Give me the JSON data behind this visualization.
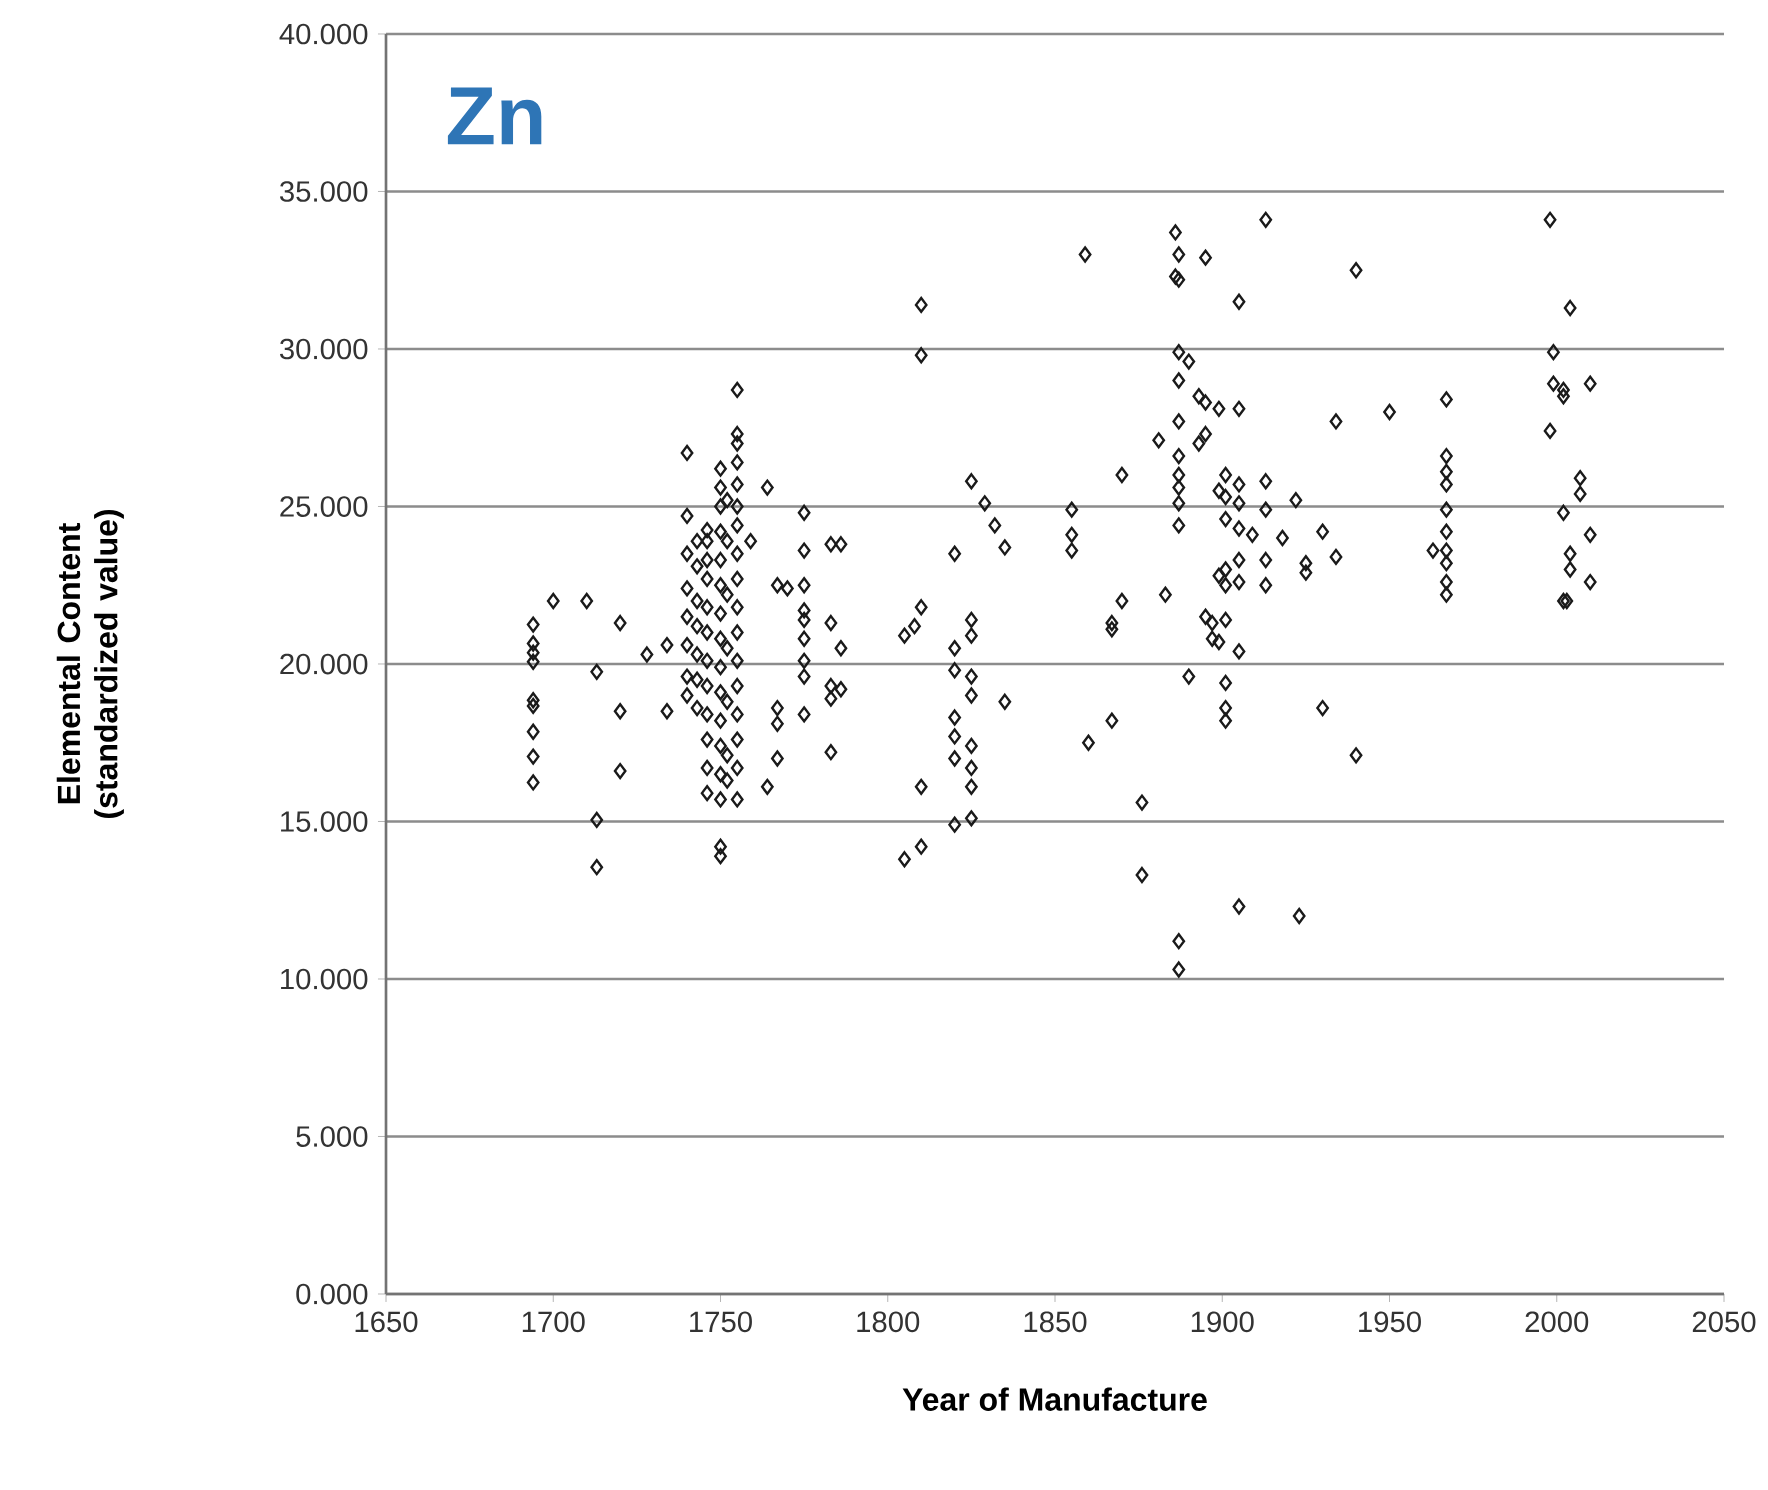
{
  "chart_data": {
    "type": "scatter",
    "title": "Zn",
    "xlabel": "Year of Manufacture",
    "ylabel": "Elemental Content (standardized value)",
    "xlim": [
      1650,
      2050
    ],
    "ylim": [
      0,
      40
    ],
    "xticks": [
      1650,
      1700,
      1750,
      1800,
      1850,
      1900,
      1950,
      2000,
      2050
    ],
    "yticks": [
      {
        "value": 0,
        "label": "0.000"
      },
      {
        "value": 5,
        "label": "5.000"
      },
      {
        "value": 10,
        "label": "10.000"
      },
      {
        "value": 15,
        "label": "15.000"
      },
      {
        "value": 20,
        "label": "20.000"
      },
      {
        "value": 25,
        "label": "25.000"
      },
      {
        "value": 30,
        "label": "30.000"
      },
      {
        "value": 35,
        "label": "35.000"
      },
      {
        "value": 40,
        "label": "40.000"
      }
    ],
    "grid": "y",
    "marker": "diamond",
    "series": [
      {
        "color": "#1a1a1a",
        "x": [
          1694,
          1694,
          1694,
          1694,
          1694,
          1694,
          1694,
          1694,
          1694,
          1700,
          1710,
          1713,
          1713,
          1713,
          1720,
          1720,
          1720,
          1728,
          1734,
          1734,
          1740,
          1740,
          1740,
          1740,
          1740,
          1740,
          1740,
          1740,
          1743,
          1743,
          1743,
          1743,
          1743,
          1743,
          1743,
          1746,
          1746,
          1746,
          1746,
          1746,
          1746,
          1746,
          1746,
          1746,
          1746,
          1746,
          1746,
          1750,
          1750,
          1750,
          1750,
          1750,
          1750,
          1750,
          1750,
          1750,
          1750,
          1750,
          1750,
          1750,
          1750,
          1750,
          1750,
          1752,
          1752,
          1752,
          1752,
          1752,
          1752,
          1752,
          1755,
          1755,
          1755,
          1755,
          1755,
          1755,
          1755,
          1755,
          1755,
          1755,
          1755,
          1755,
          1755,
          1755,
          1755,
          1755,
          1755,
          1759,
          1764,
          1764,
          1767,
          1767,
          1767,
          1767,
          1770,
          1775,
          1775,
          1775,
          1775,
          1775,
          1775,
          1775,
          1775,
          1775,
          1783,
          1783,
          1783,
          1783,
          1783,
          1786,
          1786,
          1786,
          1805,
          1805,
          1808,
          1810,
          1810,
          1810,
          1810,
          1810,
          1820,
          1820,
          1820,
          1820,
          1820,
          1820,
          1820,
          1825,
          1825,
          1825,
          1825,
          1825,
          1825,
          1825,
          1825,
          1825,
          1829,
          1832,
          1835,
          1835,
          1855,
          1855,
          1855,
          1859,
          1860,
          1867,
          1867,
          1867,
          1870,
          1870,
          1876,
          1876,
          1881,
          1883,
          1886,
          1886,
          1887,
          1887,
          1887,
          1887,
          1887,
          1887,
          1887,
          1887,
          1887,
          1887,
          1887,
          1887,
          1890,
          1890,
          1893,
          1893,
          1895,
          1895,
          1895,
          1895,
          1897,
          1897,
          1899,
          1899,
          1899,
          1899,
          1901,
          1901,
          1901,
          1901,
          1901,
          1901,
          1901,
          1901,
          1901,
          1905,
          1905,
          1905,
          1905,
          1905,
          1905,
          1905,
          1905,
          1905,
          1909,
          1913,
          1913,
          1913,
          1913,
          1913,
          1918,
          1922,
          1923,
          1925,
          1925,
          1930,
          1930,
          1934,
          1934,
          1940,
          1940,
          1950,
          1963,
          1967,
          1967,
          1967,
          1967,
          1967,
          1967,
          1967,
          1967,
          1967,
          1967,
          1998,
          1998,
          1999,
          1999,
          2002,
          2002,
          2002,
          2002,
          2003,
          2004,
          2004,
          2004,
          2007,
          2007,
          2010,
          2010,
          2010
        ],
        "values": [
          21.25,
          20.65,
          20.36,
          20.07,
          18.85,
          18.67,
          17.85,
          17.06,
          16.24,
          22.0,
          22.0,
          19.75,
          15.05,
          13.55,
          21.3,
          18.5,
          16.6,
          20.3,
          18.5,
          20.6,
          26.7,
          24.7,
          23.5,
          22.4,
          21.5,
          20.6,
          19.6,
          19.0,
          23.9,
          23.1,
          22.0,
          21.2,
          20.3,
          19.5,
          18.6,
          24.25,
          23.9,
          23.3,
          22.7,
          21.8,
          21.0,
          20.1,
          19.3,
          18.4,
          17.6,
          16.7,
          15.9,
          26.2,
          25.6,
          25.0,
          24.2,
          23.3,
          22.5,
          21.6,
          20.8,
          19.9,
          19.1,
          18.2,
          17.4,
          16.5,
          15.7,
          14.2,
          13.9,
          25.2,
          23.9,
          22.2,
          20.5,
          18.8,
          17.1,
          16.3,
          28.7,
          27.3,
          27.0,
          26.4,
          25.7,
          25.0,
          24.4,
          23.5,
          22.7,
          21.8,
          21.0,
          20.1,
          19.3,
          18.4,
          17.6,
          16.7,
          15.7,
          23.9,
          25.6,
          16.1,
          22.5,
          18.6,
          18.1,
          17.0,
          22.4,
          24.8,
          23.6,
          22.5,
          21.7,
          21.4,
          20.8,
          20.1,
          19.6,
          18.4,
          23.8,
          21.3,
          19.3,
          18.9,
          17.2,
          23.8,
          20.5,
          19.2,
          20.9,
          13.8,
          21.2,
          31.4,
          29.8,
          21.8,
          16.1,
          14.2,
          23.5,
          20.5,
          19.8,
          18.3,
          17.7,
          17.0,
          14.9,
          25.8,
          21.4,
          20.9,
          19.6,
          19.0,
          17.4,
          16.7,
          16.1,
          15.1,
          25.1,
          24.4,
          23.7,
          18.8,
          24.9,
          24.1,
          23.6,
          33.0,
          17.5,
          21.3,
          21.1,
          18.2,
          26.0,
          22.0,
          15.6,
          13.3,
          27.1,
          22.2,
          33.7,
          32.3,
          33.0,
          32.2,
          29.9,
          29.0,
          27.7,
          26.6,
          26.0,
          25.6,
          25.1,
          24.4,
          11.2,
          10.3,
          29.6,
          19.6,
          28.5,
          27.0,
          32.9,
          28.3,
          27.3,
          21.5,
          21.3,
          20.8,
          28.1,
          25.5,
          22.8,
          20.7,
          26.0,
          25.3,
          24.6,
          23.0,
          22.5,
          21.4,
          19.4,
          18.6,
          18.2,
          31.5,
          28.1,
          25.7,
          25.1,
          24.3,
          23.3,
          22.6,
          20.4,
          12.3,
          24.1,
          34.1,
          25.8,
          24.9,
          23.3,
          22.5,
          24.0,
          25.2,
          12.0,
          23.2,
          22.9,
          24.2,
          18.6,
          27.7,
          23.4,
          32.5,
          17.1,
          28.0,
          23.6,
          28.4,
          26.6,
          26.1,
          25.7,
          24.9,
          24.2,
          23.6,
          23.2,
          22.6,
          22.2,
          34.1,
          27.4,
          29.9,
          28.9,
          28.7,
          28.5,
          24.8,
          22.0,
          22.0,
          31.3,
          23.5,
          23.0,
          25.9,
          25.4,
          28.9,
          24.1,
          22.6
        ]
      }
    ]
  }
}
